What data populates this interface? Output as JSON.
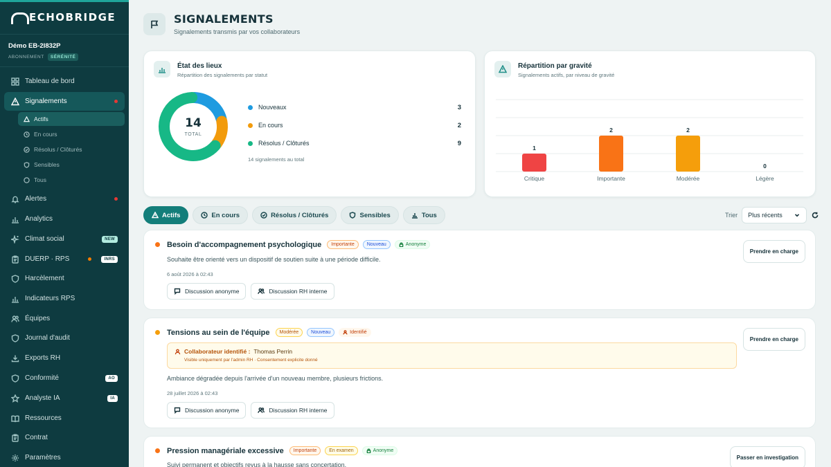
{
  "brand": "ECHOBRIDGE",
  "account": {
    "name": "Démo EB-2I832P",
    "plan_label": "ABONNEMENT",
    "plan": "SÉRÉNITÉ"
  },
  "sidebar": {
    "items": [
      {
        "label": "Tableau de bord",
        "icon": "grid-icon"
      },
      {
        "label": "Signalements",
        "icon": "warning-icon"
      },
      {
        "label": "Alertes",
        "icon": "bell-icon"
      },
      {
        "label": "Analytics",
        "icon": "bar-chart-icon"
      },
      {
        "label": "Climat social",
        "icon": "sparkle-icon",
        "badge": "NEW"
      },
      {
        "label": "DUERP · RPS",
        "icon": "clipboard-icon",
        "badge": "INRS"
      },
      {
        "label": "Harcèlement",
        "icon": "shield-icon"
      },
      {
        "label": "Indicateurs RPS",
        "icon": "bar-chart-icon"
      },
      {
        "label": "Équipes",
        "icon": "users-icon"
      },
      {
        "label": "Journal d'audit",
        "icon": "shield-icon"
      },
      {
        "label": "Exports RH",
        "icon": "download-icon"
      },
      {
        "label": "Conformité",
        "icon": "shield-icon",
        "badge": "AO"
      },
      {
        "label": "Analyste IA",
        "icon": "star-icon",
        "badge": "IA"
      },
      {
        "label": "Ressources",
        "icon": "book-icon"
      },
      {
        "label": "Contrat",
        "icon": "clipboard-icon"
      },
      {
        "label": "Paramètres",
        "icon": "gear-icon"
      }
    ],
    "sub_items": [
      {
        "label": "Actifs",
        "icon": "warning-icon"
      },
      {
        "label": "En cours",
        "icon": "clock-icon"
      },
      {
        "label": "Résolus / Clôturés",
        "icon": "check-circle-icon"
      },
      {
        "label": "Sensibles",
        "icon": "shield-icon"
      },
      {
        "label": "Tous",
        "icon": "circle-icon"
      }
    ]
  },
  "header": {
    "title": "SIGNALEMENTS",
    "subtitle": "Signalements transmis par vos collaborateurs",
    "icon": "flag-icon"
  },
  "status_card": {
    "title": "État des lieux",
    "subtitle": "Répartition des signalements par statut",
    "total": "14",
    "total_label": "TOTAL",
    "legend": [
      {
        "label": "Nouveaux",
        "value": "3",
        "color": "#1e9be0"
      },
      {
        "label": "En cours",
        "value": "2",
        "color": "#f29b0c"
      },
      {
        "label": "Résolus / Clôturés",
        "value": "9",
        "color": "#17b886"
      }
    ],
    "note": "14 signalements au total"
  },
  "severity_card": {
    "title": "Répartition par gravité",
    "subtitle": "Signalements actifs, par niveau de gravité"
  },
  "chart_data": [
    {
      "type": "pie",
      "categories": [
        "Nouveaux",
        "En cours",
        "Résolus / Clôturés"
      ],
      "values": [
        3,
        2,
        9
      ],
      "colors": [
        "#1e9be0",
        "#f29b0c",
        "#17b886"
      ],
      "style": "donut"
    },
    {
      "type": "bar",
      "categories": [
        "Critique",
        "Importante",
        "Modérée",
        "Légère"
      ],
      "values": [
        1,
        2,
        2,
        0
      ],
      "colors": [
        "#ef4444",
        "#f97316",
        "#f59e0b",
        "#9ca3af"
      ],
      "ylim": [
        0,
        4
      ],
      "grid": true
    }
  ],
  "tabs": [
    {
      "label": "Actifs",
      "icon": "warning-icon"
    },
    {
      "label": "En cours",
      "icon": "clock-icon"
    },
    {
      "label": "Résolus / Clôturés",
      "icon": "check-circle-icon"
    },
    {
      "label": "Sensibles",
      "icon": "shield-icon"
    },
    {
      "label": "Tous",
      "icon": "bar-chart-icon"
    }
  ],
  "sort": {
    "label": "Trier",
    "value": "Plus récents"
  },
  "reports": [
    {
      "title": "Besoin d'accompagnement psychologique",
      "dot_color": "#f97316",
      "tags": [
        {
          "label": "Importante",
          "kind": "importante"
        },
        {
          "label": "Nouveau",
          "kind": "nouveau"
        },
        {
          "label": "Anonyme",
          "kind": "anonyme"
        }
      ],
      "description": "Souhaite être orienté vers un dispositif de soutien suite à une période difficile.",
      "date": "6 août 2026 à 02:43",
      "buttons": [
        "Discussion anonyme",
        "Discussion RH interne"
      ],
      "action": "Prendre en charge"
    },
    {
      "title": "Tensions au sein de l'équipe",
      "dot_color": "#f59e0b",
      "tags": [
        {
          "label": "Modérée",
          "kind": "moderee"
        },
        {
          "label": "Nouveau",
          "kind": "nouveau"
        },
        {
          "label": "Identifié",
          "kind": "identifie"
        }
      ],
      "identity": {
        "label": "Collaborateur identifié :",
        "name": "Thomas Perrin",
        "note": "Visible uniquement par l'admin RH · Consentement explicite donné"
      },
      "description": "Ambiance dégradée depuis l'arrivée d'un nouveau membre, plusieurs frictions.",
      "date": "28 juillet 2026 à 02:43",
      "buttons": [
        "Discussion anonyme",
        "Discussion RH interne"
      ],
      "action": "Prendre en charge"
    },
    {
      "title": "Pression managériale excessive",
      "dot_color": "#f97316",
      "tags": [
        {
          "label": "Importante",
          "kind": "importante"
        },
        {
          "label": "En examen",
          "kind": "examen"
        },
        {
          "label": "Anonyme",
          "kind": "anonyme"
        }
      ],
      "description": "Suivi permanent et objectifs revus à la hausse sans concertation.",
      "action": "Passer en investigation"
    }
  ]
}
